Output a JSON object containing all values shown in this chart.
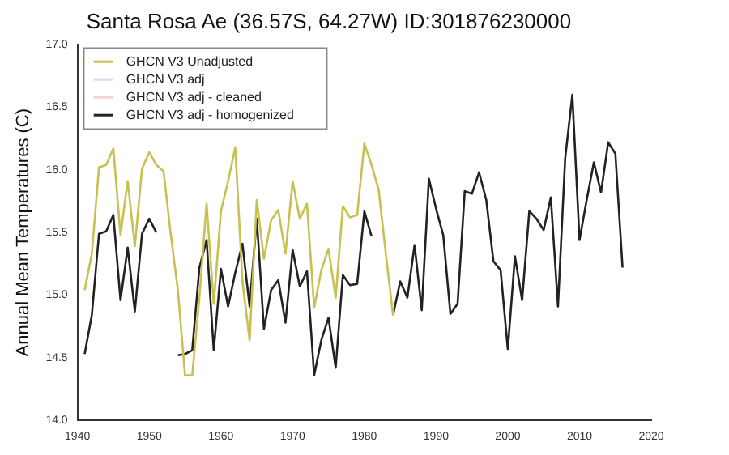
{
  "chart_data": {
    "type": "line",
    "title": "Santa Rosa Ae (36.57S, 64.27W) ID:301876230000",
    "ylabel": "Annual Mean Temperatures (C)",
    "xlim": [
      1940,
      2020
    ],
    "xticks": [
      1940,
      1950,
      1960,
      1970,
      1980,
      1990,
      2000,
      2010,
      2020
    ],
    "ylim": [
      14,
      17
    ],
    "yticks": [
      {
        "value": 14,
        "label": "14.0"
      },
      {
        "value": 14.5,
        "label": "14.5"
      },
      {
        "value": 15,
        "label": "15.0"
      },
      {
        "value": 15.5,
        "label": "15.5"
      },
      {
        "value": 16,
        "label": "16.0"
      },
      {
        "value": 16.5,
        "label": "16.5"
      },
      {
        "value": 17,
        "label": "17.0"
      }
    ],
    "grid": false,
    "legend": "top left",
    "marker": "none",
    "line_style": "solid",
    "series": [
      {
        "name": "GHCN V3 Unadjusted",
        "color": "#c8c050",
        "x": [
          1941,
          1942,
          1943,
          1944,
          1945,
          1946,
          1947,
          1948,
          1949,
          1950,
          1951,
          1952,
          1953,
          1954,
          1955,
          1956,
          1957,
          1958,
          1959,
          1960,
          1961,
          1962,
          1963,
          1964,
          1965,
          1966,
          1967,
          1968,
          1969,
          1970,
          1971,
          1972,
          1973,
          1974,
          1975,
          1976,
          1977,
          1978,
          1979,
          1980,
          1981,
          1982,
          1983,
          1984
        ],
        "values": [
          15.04,
          15.33,
          16.02,
          16.04,
          16.17,
          15.48,
          15.91,
          15.39,
          16.01,
          16.14,
          16.04,
          15.99,
          15.49,
          15.04,
          14.36,
          14.36,
          14.98,
          15.73,
          14.93,
          15.67,
          15.91,
          16.18,
          15.11,
          14.64,
          15.76,
          15.29,
          15.6,
          15.68,
          15.33,
          15.91,
          15.61,
          15.73,
          14.9,
          15.2,
          15.37,
          14.98,
          15.71,
          15.62,
          15.64,
          16.21,
          16.04,
          15.84,
          15.33,
          14.84
        ]
      },
      {
        "name": "GHCN V3 adj",
        "color": "#d8d8f0"
      },
      {
        "name": "GHCN V3 adj - cleaned",
        "color": "#f5d0d0"
      },
      {
        "name": "GHCN V3 adj - homogenized",
        "color": "#222222",
        "x": [
          1941,
          1942,
          1943,
          1944,
          1945,
          1946,
          1947,
          1948,
          1949,
          1950,
          1951,
          1952,
          1954,
          1955,
          1956,
          1957,
          1958,
          1959,
          1960,
          1961,
          1962,
          1963,
          1964,
          1965,
          1966,
          1967,
          1968,
          1969,
          1970,
          1971,
          1972,
          1973,
          1974,
          1975,
          1976,
          1977,
          1978,
          1979,
          1980,
          1981,
          1982,
          1984,
          1985,
          1986,
          1987,
          1988,
          1989,
          1990,
          1991,
          1992,
          1993,
          1994,
          1995,
          1996,
          1997,
          1998,
          1999,
          2000,
          2001,
          2002,
          2003,
          2004,
          2005,
          2006,
          2007,
          2008,
          2009,
          2010,
          2011,
          2012,
          2013,
          2014,
          2015,
          2016
        ],
        "values": [
          14.53,
          14.84,
          15.49,
          15.51,
          15.64,
          14.96,
          15.38,
          14.87,
          15.49,
          15.61,
          15.5,
          null,
          14.52,
          14.53,
          14.56,
          15.22,
          15.44,
          14.56,
          15.21,
          14.91,
          15.18,
          15.41,
          14.91,
          15.61,
          14.73,
          15.04,
          15.12,
          14.78,
          15.36,
          15.07,
          15.19,
          14.36,
          14.64,
          14.82,
          14.42,
          15.16,
          15.08,
          15.09,
          15.67,
          15.47,
          null,
          14.84,
          15.11,
          14.98,
          15.4,
          14.88,
          15.93,
          15.69,
          15.48,
          14.85,
          14.93,
          15.83,
          15.81,
          15.98,
          15.76,
          15.27,
          15.2,
          14.57,
          15.31,
          14.96,
          15.67,
          15.61,
          15.52,
          15.78,
          14.91,
          16.09,
          16.6,
          15.44,
          15.76,
          16.06,
          15.82,
          16.22,
          16.13,
          15.22
        ]
      }
    ]
  }
}
